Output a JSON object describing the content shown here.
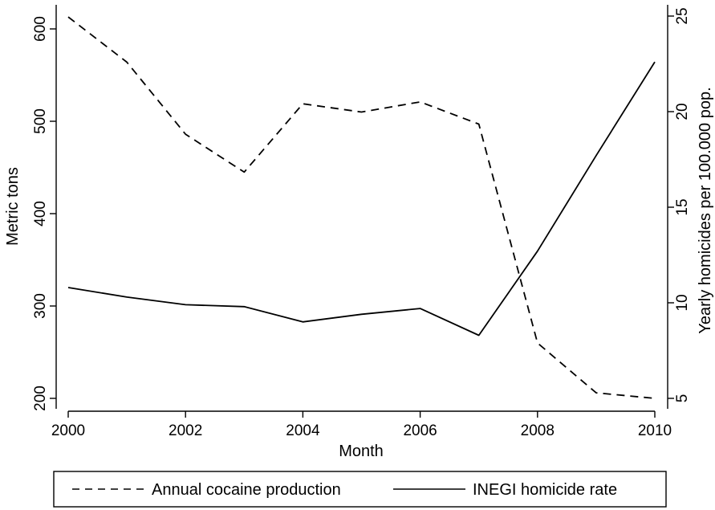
{
  "chart_data": {
    "type": "line",
    "xlabel": "Month",
    "ylabel_left": "Metric tons",
    "ylabel_right": "Yearly homicides per 100.000 pop.",
    "x": [
      2000,
      2001,
      2002,
      2003,
      2004,
      2005,
      2006,
      2007,
      2008,
      2009,
      2010
    ],
    "xlim": [
      2000,
      2010
    ],
    "xticks": [
      "2000",
      "2002",
      "2004",
      "2006",
      "2008",
      "2010"
    ],
    "ylim_left": [
      200,
      620
    ],
    "yticks_left": [
      "200",
      "300",
      "400",
      "500",
      "600"
    ],
    "ylim_right": [
      5,
      25
    ],
    "yticks_right": [
      "5",
      "10",
      "15",
      "20",
      "25"
    ],
    "grid": false,
    "legend_position": "bottom",
    "series": [
      {
        "name": "Annual cocaine production",
        "axis": "left",
        "style": "dashed",
        "color": "#000000",
        "values": [
          613,
          564,
          486,
          445,
          519,
          510,
          521,
          497,
          260,
          206,
          200
        ]
      },
      {
        "name": "INEGI homicide rate",
        "axis": "right",
        "style": "solid",
        "color": "#000000",
        "values": [
          10.8,
          10.3,
          9.9,
          9.8,
          9.0,
          9.4,
          9.7,
          8.3,
          12.7,
          17.7,
          22.6
        ]
      }
    ]
  }
}
